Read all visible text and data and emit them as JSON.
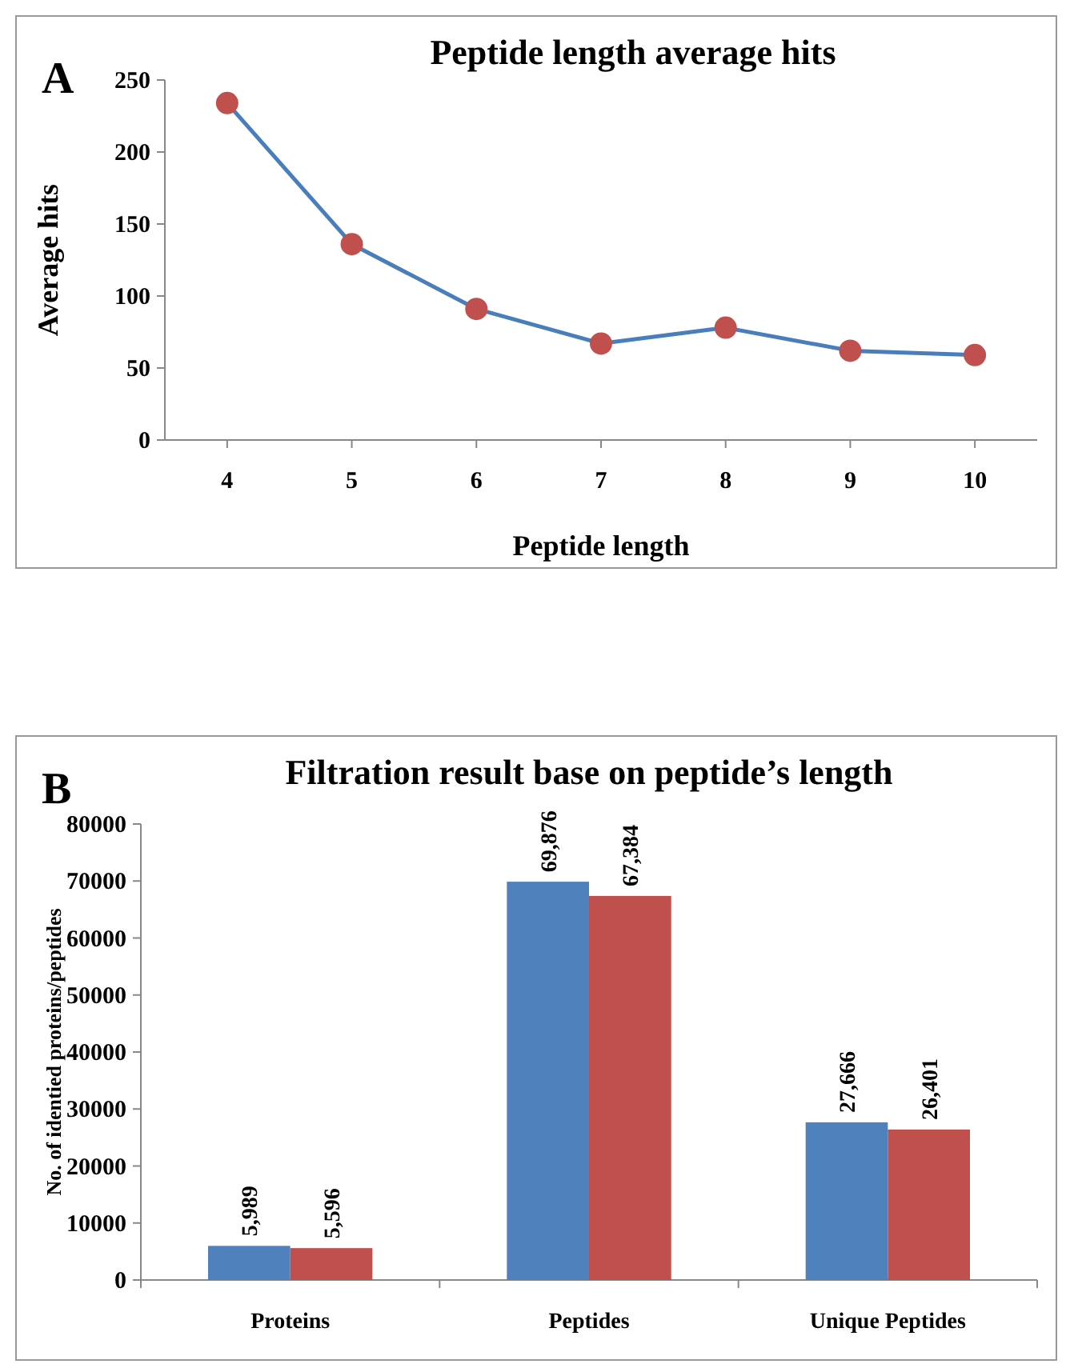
{
  "chart_data": [
    {
      "type": "line",
      "title": "Peptide length average hits",
      "xlabel": "Peptide length",
      "ylabel": "Average hits",
      "annotations": [
        "A"
      ],
      "categories": [
        "4",
        "5",
        "6",
        "7",
        "8",
        "9",
        "10"
      ],
      "ylim": [
        0,
        250
      ],
      "yticks": [
        0,
        50,
        100,
        150,
        200,
        250
      ],
      "line_style": "solid",
      "series": [
        {
          "type": "line",
          "marker": "circle",
          "color": "#4a7ebb",
          "colors": [
            "#c0504d",
            "#c0504d",
            "#c0504d",
            "#c0504d",
            "#c0504d",
            "#c0504d",
            "#c0504d"
          ],
          "values": [
            234,
            136,
            91,
            67,
            78,
            62,
            59
          ]
        }
      ]
    },
    {
      "type": "bar",
      "title": "Filtration result base on peptide’s length",
      "ylabel": "No. of identied  proteins/peptides",
      "annotations": [
        "B"
      ],
      "categories": [
        "Proteins",
        "Peptides",
        "Unique Peptides"
      ],
      "ylim": [
        0,
        80000
      ],
      "yticks": [
        0,
        10000,
        20000,
        30000,
        40000,
        50000,
        60000,
        70000,
        80000
      ],
      "series": [
        {
          "color": "#4f81bd",
          "values": [
            5989,
            69876,
            27666
          ],
          "value_labels": [
            "5,989",
            "69,876",
            "27,666"
          ]
        },
        {
          "color": "#c0504d",
          "values": [
            5596,
            67384,
            26401
          ],
          "value_labels": [
            "5,596",
            "67,384",
            "26,401"
          ]
        }
      ]
    }
  ]
}
